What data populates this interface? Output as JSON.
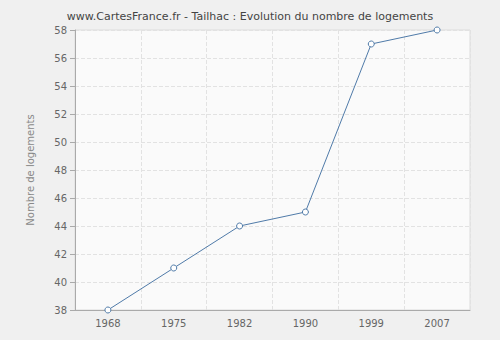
{
  "chart_data": {
    "type": "line",
    "title": "www.CartesFrance.fr - Tailhac : Evolution du nombre de logements",
    "y_label": "Nombre de logements",
    "categories": [
      "1968",
      "1975",
      "1982",
      "1990",
      "1999",
      "2007"
    ],
    "values": [
      38,
      41,
      44,
      45,
      57,
      58
    ],
    "color": "#4f7aa8",
    "marker": "circle",
    "ylim": [
      38,
      58
    ],
    "yticks": [
      38,
      40,
      42,
      44,
      46,
      48,
      50,
      52,
      54,
      56,
      58
    ],
    "grid": true
  }
}
